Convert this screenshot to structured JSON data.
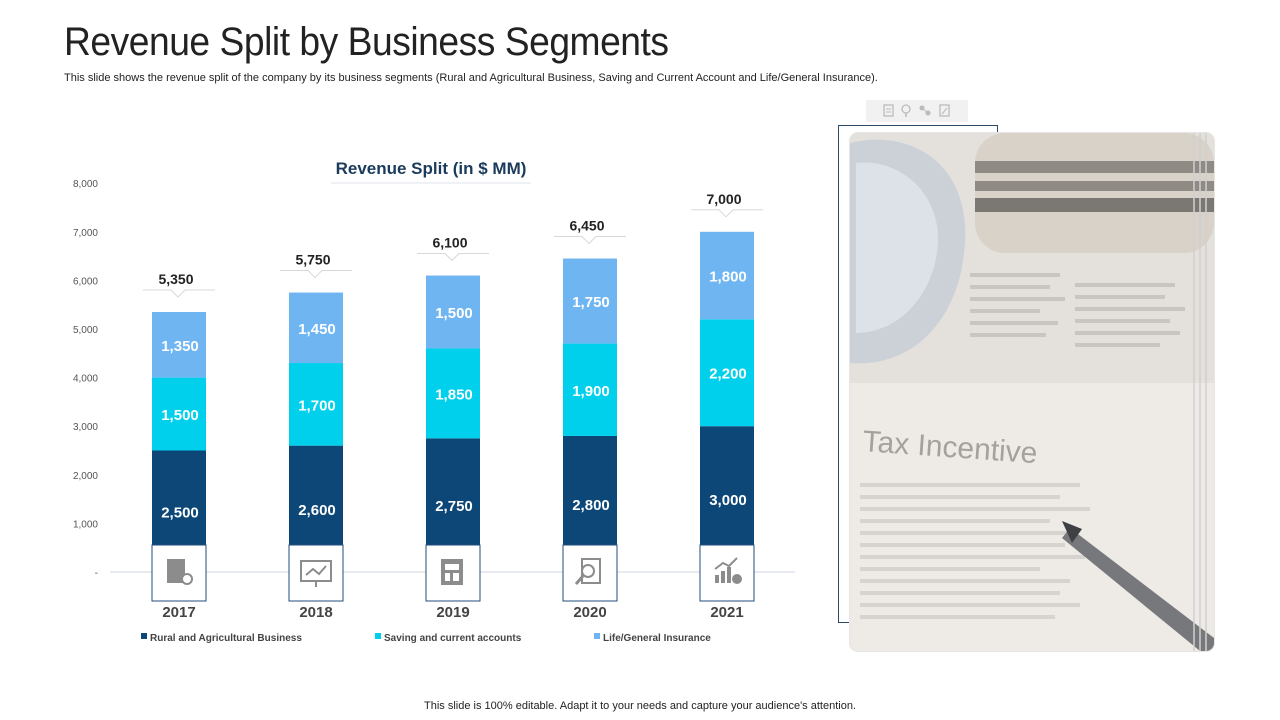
{
  "header": {
    "title": "Revenue Split by Business Segments",
    "subtitle": "This slide shows the revenue split of the company by its business segments (Rural and Agricultural Business, Saving and Current Account and Life/General Insurance)."
  },
  "footer": {
    "text": "This slide is 100% editable. Adapt it to your needs and capture your audience's attention."
  },
  "photo": {
    "caption_text": "Tax Incentive"
  },
  "chart_data": {
    "type": "bar",
    "stacked": true,
    "title": "Revenue Split (in $ MM)",
    "categories": [
      "2017",
      "2018",
      "2019",
      "2020",
      "2021"
    ],
    "series": [
      {
        "name": "Rural and Agricultural Business",
        "values": [
          2500,
          2600,
          2750,
          2800,
          3000
        ],
        "color": "#0d4778"
      },
      {
        "name": "Saving and current accounts",
        "values": [
          1500,
          1700,
          1850,
          1900,
          2200
        ],
        "color": "#00d0ec"
      },
      {
        "name": "Life/General Insurance",
        "values": [
          1350,
          1450,
          1500,
          1750,
          1800
        ],
        "color": "#6fb5f2"
      }
    ],
    "totals": [
      5350,
      5750,
      6100,
      6450,
      7000
    ],
    "total_labels": [
      "5,350",
      "5,750",
      "6,100",
      "6,450",
      "7,000"
    ],
    "value_labels": [
      [
        "2,500",
        "2,600",
        "2,750",
        "2,800",
        "3,000"
      ],
      [
        "1,500",
        "1,700",
        "1,850",
        "1,900",
        "2,200"
      ],
      [
        "1,350",
        "1,450",
        "1,500",
        "1,750",
        "1,800"
      ]
    ],
    "ytick_labels": [
      "-",
      "1,000",
      "2,000",
      "3,000",
      "4,000",
      "5,000",
      "6,000",
      "7,000",
      "8,000"
    ],
    "ylim": [
      0,
      8000
    ],
    "xlabel": "",
    "ylabel": "",
    "grid": false,
    "legend_position": "bottom",
    "category_icons": [
      "report-search-icon",
      "monitor-chart-icon",
      "calculator-document-icon",
      "document-magnifier-icon",
      "growth-chart-gear-icon"
    ]
  }
}
